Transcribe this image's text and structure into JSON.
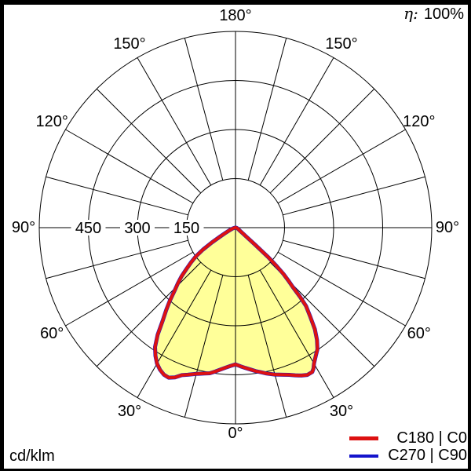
{
  "header": {
    "efficiency_label": "η:",
    "efficiency_value": "100%"
  },
  "footer": {
    "unit_label": "cd/klm"
  },
  "chart_data": {
    "type": "line",
    "plot_style": "polar-photometric",
    "angle_zero": "bottom",
    "unit": "cd/klm",
    "efficiency_percent": 100,
    "r_axis": {
      "min": 0,
      "max": 600,
      "step": 150,
      "unit": "cd/klm"
    },
    "r_max": 600,
    "ring_values": [
      150,
      300,
      450,
      600
    ],
    "radial_tick_labels": [
      {
        "value": 450,
        "label": "450"
      },
      {
        "value": 300,
        "label": "300"
      },
      {
        "value": 150,
        "label": "150"
      }
    ],
    "spoke_step_deg": 15,
    "spoke_inner_value": 150,
    "angle_labels": [
      {
        "deg": 0,
        "label": "0°"
      },
      {
        "deg": 30,
        "label": "30°"
      },
      {
        "deg": -30,
        "label": "30°"
      },
      {
        "deg": 60,
        "label": "60°"
      },
      {
        "deg": -60,
        "label": "60°"
      },
      {
        "deg": 90,
        "label": "90°"
      },
      {
        "deg": -90,
        "label": "90°"
      },
      {
        "deg": 120,
        "label": "120°"
      },
      {
        "deg": -120,
        "label": "120°"
      },
      {
        "deg": 150,
        "label": "150°"
      },
      {
        "deg": -150,
        "label": "150°"
      },
      {
        "deg": 180,
        "label": "180°"
      }
    ],
    "fill_color": "#ffff99",
    "grid_color": "#000000",
    "series": [
      {
        "name": "C180 | C0",
        "color": "#dd1111",
        "points": [
          [
            -90,
            0
          ],
          [
            -80,
            4
          ],
          [
            -73,
            9
          ],
          [
            -67,
            18
          ],
          [
            -63,
            32
          ],
          [
            -60,
            55
          ],
          [
            -58,
            85
          ],
          [
            -56,
            120
          ],
          [
            -54,
            150
          ],
          [
            -52,
            172
          ],
          [
            -50,
            195
          ],
          [
            -48,
            222
          ],
          [
            -46,
            245
          ],
          [
            -44,
            268
          ],
          [
            -42,
            300
          ],
          [
            -40,
            330
          ],
          [
            -38,
            362
          ],
          [
            -36,
            405
          ],
          [
            -34,
            440
          ],
          [
            -32,
            462
          ],
          [
            -30,
            480
          ],
          [
            -28,
            492
          ],
          [
            -26,
            500
          ],
          [
            -24,
            502
          ],
          [
            -22,
            494
          ],
          [
            -20,
            480
          ],
          [
            -18,
            473
          ],
          [
            -15,
            463
          ],
          [
            -12,
            456
          ],
          [
            -10,
            452
          ],
          [
            -8,
            444
          ],
          [
            -6,
            436
          ],
          [
            -4,
            429
          ],
          [
            -2,
            423
          ],
          [
            0,
            418
          ],
          [
            2,
            424
          ],
          [
            4,
            430
          ],
          [
            6,
            436
          ],
          [
            8,
            443
          ],
          [
            10,
            449
          ],
          [
            12,
            456
          ],
          [
            15,
            465
          ],
          [
            18,
            473
          ],
          [
            20,
            479
          ],
          [
            22,
            487
          ],
          [
            24,
            495
          ],
          [
            26,
            501
          ],
          [
            28,
            500
          ],
          [
            29,
            492
          ],
          [
            30,
            480
          ],
          [
            32,
            463
          ],
          [
            34,
            448
          ],
          [
            36,
            424
          ],
          [
            38,
            394
          ],
          [
            40,
            356
          ],
          [
            42,
            322
          ],
          [
            43,
            290
          ],
          [
            44,
            252
          ],
          [
            45,
            228
          ],
          [
            46,
            204
          ],
          [
            47,
            168
          ],
          [
            48,
            134
          ],
          [
            49,
            80
          ],
          [
            50,
            46
          ],
          [
            52,
            27
          ],
          [
            55,
            17
          ],
          [
            60,
            11
          ],
          [
            67,
            7
          ],
          [
            75,
            4
          ],
          [
            82,
            2
          ],
          [
            90,
            0
          ]
        ]
      },
      {
        "name": "C270 | C90",
        "color": "#1414cc",
        "points": [
          [
            -90,
            0
          ],
          [
            -80,
            4
          ],
          [
            -73,
            9
          ],
          [
            -67,
            18
          ],
          [
            -63,
            32
          ],
          [
            -60,
            55
          ],
          [
            -58,
            85
          ],
          [
            -56,
            120
          ],
          [
            -54,
            150
          ],
          [
            -52,
            172
          ],
          [
            -50,
            195
          ],
          [
            -48,
            222
          ],
          [
            -46,
            245
          ],
          [
            -44,
            268
          ],
          [
            -42,
            300
          ],
          [
            -40,
            330
          ],
          [
            -38,
            362
          ],
          [
            -36,
            405
          ],
          [
            -34,
            440
          ],
          [
            -32,
            462
          ],
          [
            -30,
            480
          ],
          [
            -28,
            492
          ],
          [
            -26,
            500
          ],
          [
            -24,
            502
          ],
          [
            -22,
            494
          ],
          [
            -20,
            480
          ],
          [
            -18,
            473
          ],
          [
            -15,
            463
          ],
          [
            -12,
            456
          ],
          [
            -10,
            452
          ],
          [
            -8,
            444
          ],
          [
            -6,
            436
          ],
          [
            -4,
            429
          ],
          [
            -2,
            423
          ],
          [
            0,
            418
          ],
          [
            2,
            424
          ],
          [
            4,
            430
          ],
          [
            6,
            436
          ],
          [
            8,
            443
          ],
          [
            10,
            449
          ],
          [
            12,
            456
          ],
          [
            15,
            465
          ],
          [
            18,
            473
          ],
          [
            20,
            479
          ],
          [
            22,
            487
          ],
          [
            24,
            495
          ],
          [
            26,
            501
          ],
          [
            28,
            500
          ],
          [
            29,
            492
          ],
          [
            30,
            480
          ],
          [
            32,
            463
          ],
          [
            34,
            448
          ],
          [
            36,
            424
          ],
          [
            38,
            394
          ],
          [
            40,
            356
          ],
          [
            42,
            322
          ],
          [
            43,
            290
          ],
          [
            44,
            252
          ],
          [
            45,
            228
          ],
          [
            46,
            204
          ],
          [
            47,
            168
          ],
          [
            48,
            134
          ],
          [
            49,
            80
          ],
          [
            50,
            46
          ],
          [
            52,
            27
          ],
          [
            55,
            17
          ],
          [
            60,
            11
          ],
          [
            67,
            7
          ],
          [
            75,
            4
          ],
          [
            82,
            2
          ],
          [
            90,
            0
          ]
        ]
      }
    ]
  }
}
